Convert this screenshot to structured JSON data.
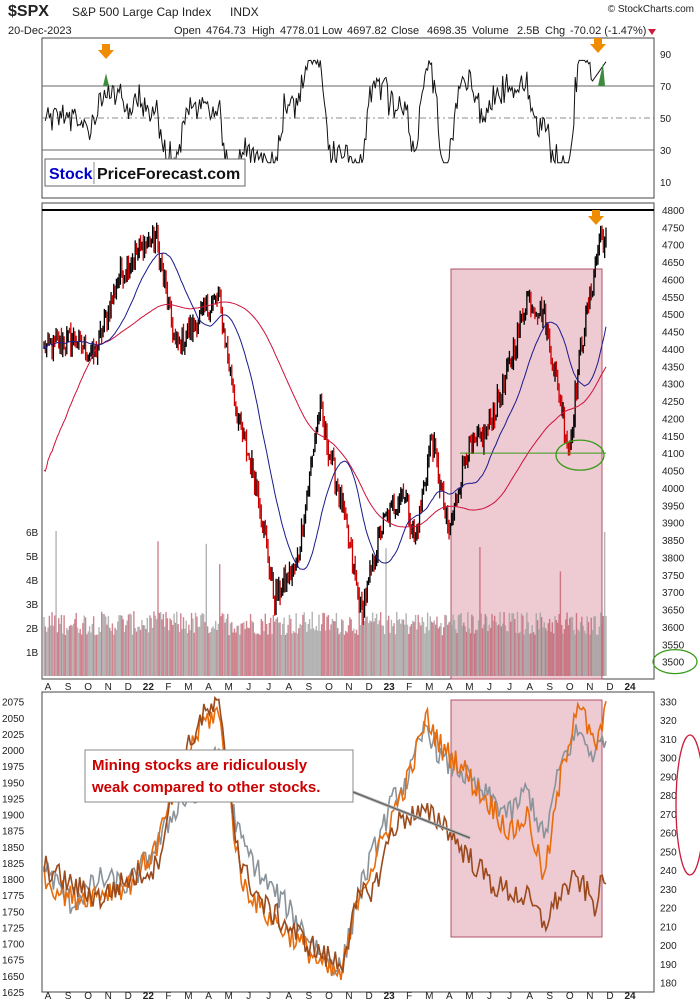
{
  "header": {
    "symbol": "$SPX",
    "name": "S&P 500 Large Cap Index",
    "exchange": "INDX",
    "date": "20-Dec-2023",
    "open_label": "Open",
    "open": "4764.73",
    "high_label": "High",
    "high": "4778.01",
    "low_label": "Low",
    "low": "4697.82",
    "close_label": "Close",
    "close": "4698.35",
    "volume_label": "Volume",
    "volume": "2.5B",
    "chg_label": "Chg",
    "chg": "-70.02 (-1.47%)",
    "watermark": "© StockCharts.com"
  },
  "logo": {
    "part1": "Stock",
    "part2": "PriceForecast.com"
  },
  "annotation": {
    "lines": [
      "Mining stocks are ridiculously",
      "weak compared to other stocks."
    ]
  },
  "colors": {
    "price_up": "#000000",
    "price_down": "#cc0000",
    "ma_short": "#1a1a8c",
    "ma_long": "#d0103a",
    "rsi": "#111111",
    "rsi_extreme": "#3d8b3d",
    "shade": "#d98a9e",
    "arrow": "#f08c00",
    "gdx": "#e86c0c",
    "gdx_brown": "#9a4a1c",
    "gold_gray": "#8a9399",
    "support": "#3a9a1a",
    "ellipse_red": "#cc1a3a",
    "text_red": "#cc0000",
    "logo_blue": "#0000cc"
  },
  "chart_data": [
    {
      "type": "line",
      "panel": "RSI",
      "ylim": [
        0,
        100
      ],
      "y_ticks": [
        10,
        30,
        50,
        70,
        90
      ],
      "ref_lines": [
        30,
        50,
        70
      ],
      "grid": false
    },
    {
      "type": "candlestick",
      "panel": "S&P 500 price with moving averages and volume",
      "ylim": [
        3450,
        4820
      ],
      "y_ticks": [
        3500,
        3550,
        3600,
        3650,
        3700,
        3750,
        3800,
        3850,
        3900,
        3950,
        4000,
        4050,
        4100,
        4150,
        4200,
        4250,
        4300,
        4350,
        4400,
        4450,
        4500,
        4550,
        4600,
        4650,
        4700,
        4750,
        4800
      ],
      "volume_ticks": [
        "1B",
        "2B",
        "3B",
        "4B",
        "5B",
        "6B"
      ],
      "volume_ylim": [
        0,
        6.5
      ],
      "x_ticks": [
        "A",
        "S",
        "O",
        "N",
        "D",
        "22",
        "F",
        "M",
        "A",
        "M",
        "J",
        "J",
        "A",
        "S",
        "O",
        "N",
        "D",
        "23",
        "F",
        "M",
        "A",
        "M",
        "J",
        "J",
        "A",
        "S",
        "O",
        "N",
        "D",
        "24"
      ],
      "key_points": [
        {
          "t": 0.0,
          "price": 4400
        },
        {
          "t": 0.05,
          "price": 4430
        },
        {
          "t": 0.09,
          "price": 4380
        },
        {
          "t": 0.13,
          "price": 4600
        },
        {
          "t": 0.17,
          "price": 4690
        },
        {
          "t": 0.2,
          "price": 4720
        },
        {
          "t": 0.235,
          "price": 4400
        },
        {
          "t": 0.27,
          "price": 4480
        },
        {
          "t": 0.31,
          "price": 4550
        },
        {
          "t": 0.345,
          "price": 4200
        },
        {
          "t": 0.38,
          "price": 4000
        },
        {
          "t": 0.41,
          "price": 3680
        },
        {
          "t": 0.45,
          "price": 3780
        },
        {
          "t": 0.49,
          "price": 4230
        },
        {
          "t": 0.53,
          "price": 3950
        },
        {
          "t": 0.565,
          "price": 3640
        },
        {
          "t": 0.6,
          "price": 3880
        },
        {
          "t": 0.64,
          "price": 4000
        },
        {
          "t": 0.66,
          "price": 3840
        },
        {
          "t": 0.69,
          "price": 4150
        },
        {
          "t": 0.72,
          "price": 3860
        },
        {
          "t": 0.75,
          "price": 4100
        },
        {
          "t": 0.785,
          "price": 4150
        },
        {
          "t": 0.82,
          "price": 4300
        },
        {
          "t": 0.86,
          "price": 4550
        },
        {
          "t": 0.89,
          "price": 4500
        },
        {
          "t": 0.915,
          "price": 4280
        },
        {
          "t": 0.935,
          "price": 4110
        },
        {
          "t": 0.955,
          "price": 4400
        },
        {
          "t": 0.975,
          "price": 4580
        },
        {
          "t": 0.99,
          "price": 4730
        },
        {
          "t": 1.0,
          "price": 4698
        }
      ],
      "highlight": {
        "from": "M",
        "to": "D",
        "price_range": [
          3500,
          4630
        ]
      },
      "support_level": 4100,
      "resistance_level": 4800,
      "series": [
        {
          "name": "$SPX"
        }
      ]
    },
    {
      "type": "line",
      "panel": "Gold and miners comparison",
      "y_left_ticks": [
        1625,
        1650,
        1675,
        1700,
        1725,
        1750,
        1775,
        1800,
        1825,
        1850,
        1875,
        1900,
        1925,
        1950,
        1975,
        2000,
        2025,
        2050,
        2075
      ],
      "y_left_lim": [
        1625,
        2090
      ],
      "y_right_ticks": [
        180,
        190,
        200,
        210,
        220,
        230,
        240,
        250,
        260,
        270,
        280,
        290,
        300,
        310,
        320,
        330
      ],
      "y_right_lim": [
        175,
        335
      ],
      "x_ticks": [
        "A",
        "S",
        "O",
        "N",
        "D",
        "22",
        "F",
        "M",
        "A",
        "M",
        "J",
        "J",
        "A",
        "S",
        "O",
        "N",
        "D",
        "23",
        "F",
        "M",
        "A",
        "M",
        "J",
        "J",
        "A",
        "S",
        "O",
        "N",
        "D",
        "24"
      ],
      "series": [
        {
          "color": "gold_gray",
          "key_points": [
            [
              0,
              1820
            ],
            [
              0.05,
              1760
            ],
            [
              0.1,
              1800
            ],
            [
              0.15,
              1790
            ],
            [
              0.2,
              1850
            ],
            [
              0.24,
              1920
            ],
            [
              0.28,
              1930
            ],
            [
              0.31,
              2000
            ],
            [
              0.35,
              1860
            ],
            [
              0.39,
              1800
            ],
            [
              0.43,
              1760
            ],
            [
              0.47,
              1710
            ],
            [
              0.5,
              1680
            ],
            [
              0.53,
              1660
            ],
            [
              0.56,
              1780
            ],
            [
              0.59,
              1850
            ],
            [
              0.62,
              1920
            ],
            [
              0.65,
              1960
            ],
            [
              0.68,
              2040
            ],
            [
              0.71,
              1980
            ],
            [
              0.74,
              1970
            ],
            [
              0.77,
              1940
            ],
            [
              0.8,
              1920
            ],
            [
              0.83,
              1900
            ],
            [
              0.86,
              1940
            ],
            [
              0.89,
              1860
            ],
            [
              0.92,
              1980
            ],
            [
              0.95,
              2030
            ],
            [
              0.98,
              1990
            ],
            [
              1.0,
              2030
            ]
          ]
        },
        {
          "color": "gdx",
          "key_points": [
            [
              0,
              1800
            ],
            [
              0.05,
              1770
            ],
            [
              0.1,
              1780
            ],
            [
              0.15,
              1790
            ],
            [
              0.2,
              1850
            ],
            [
              0.24,
              1960
            ],
            [
              0.28,
              2040
            ],
            [
              0.31,
              2060
            ],
            [
              0.35,
              1800
            ],
            [
              0.39,
              1750
            ],
            [
              0.43,
              1720
            ],
            [
              0.47,
              1690
            ],
            [
              0.5,
              1660
            ],
            [
              0.53,
              1650
            ],
            [
              0.56,
              1780
            ],
            [
              0.59,
              1830
            ],
            [
              0.62,
              1900
            ],
            [
              0.65,
              1960
            ],
            [
              0.68,
              2050
            ],
            [
              0.71,
              2000
            ],
            [
              0.74,
              1980
            ],
            [
              0.77,
              1940
            ],
            [
              0.8,
              1910
            ],
            [
              0.83,
              1870
            ],
            [
              0.86,
              1900
            ],
            [
              0.89,
              1800
            ],
            [
              0.92,
              1960
            ],
            [
              0.95,
              2080
            ],
            [
              0.98,
              2000
            ],
            [
              1.0,
              2060
            ]
          ]
        },
        {
          "color": "gdx_brown",
          "key_points": [
            [
              0,
              1820
            ],
            [
              0.05,
              1790
            ],
            [
              0.1,
              1770
            ],
            [
              0.15,
              1800
            ],
            [
              0.2,
              1820
            ],
            [
              0.24,
              1970
            ],
            [
              0.28,
              2050
            ],
            [
              0.31,
              2070
            ],
            [
              0.35,
              1820
            ],
            [
              0.39,
              1760
            ],
            [
              0.43,
              1730
            ],
            [
              0.47,
              1700
            ],
            [
              0.5,
              1680
            ],
            [
              0.53,
              1670
            ],
            [
              0.56,
              1770
            ],
            [
              0.59,
              1790
            ],
            [
              0.62,
              1880
            ],
            [
              0.65,
              1900
            ],
            [
              0.68,
              1900
            ],
            [
              0.71,
              1890
            ],
            [
              0.74,
              1850
            ],
            [
              0.77,
              1820
            ],
            [
              0.8,
              1790
            ],
            [
              0.83,
              1780
            ],
            [
              0.86,
              1770
            ],
            [
              0.89,
              1730
            ],
            [
              0.92,
              1780
            ],
            [
              0.95,
              1800
            ],
            [
              0.98,
              1760
            ],
            [
              1.0,
              1810
            ]
          ]
        }
      ]
    }
  ]
}
